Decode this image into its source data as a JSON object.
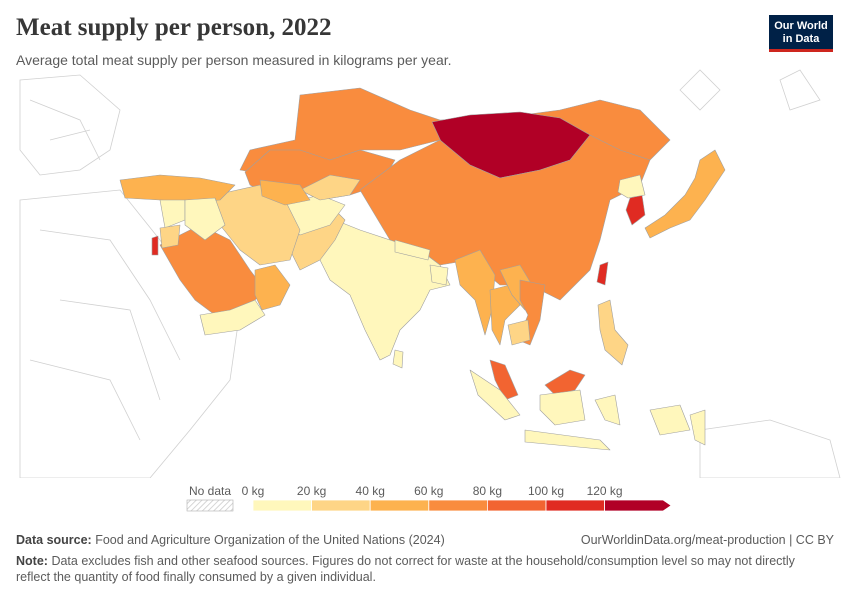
{
  "header": {
    "title": "Meat supply per person, 2022",
    "subtitle": "Average total meat supply per person measured in kilograms per year."
  },
  "logo": {
    "line1": "Our World",
    "line2": "in Data"
  },
  "legend": {
    "no_data_label": "No data",
    "ticks": [
      "0 kg",
      "20 kg",
      "40 kg",
      "60 kg",
      "80 kg",
      "100 kg",
      "120 kg"
    ],
    "colors": [
      "#fff7bc",
      "#fed586",
      "#fdb24f",
      "#f98c3e",
      "#f26431",
      "#e02b22",
      "#b10026"
    ]
  },
  "footer": {
    "source_label": "Data source:",
    "source_text": "Food and Agriculture Organization of the United Nations (2024)",
    "url": "OurWorldinData.org/meat-production | CC BY",
    "note_label": "Note:",
    "note_text": "Data excludes fish and other seafood sources. Figures do not correct for waste at the household/consumption level so may not directly reflect the quantity of food finally consumed by a given individual."
  },
  "map_regions": [
    {
      "name": "Russia",
      "color": "#f98c3e"
    },
    {
      "name": "Kazakhstan",
      "color": "#f98c3e"
    },
    {
      "name": "Mongolia",
      "color": "#b10026"
    },
    {
      "name": "China",
      "color": "#f98c3e"
    },
    {
      "name": "Japan",
      "color": "#fdb24f"
    },
    {
      "name": "South Korea",
      "color": "#e02b22"
    },
    {
      "name": "North Korea",
      "color": "#fff7bc"
    },
    {
      "name": "Taiwan",
      "color": "#e02b22"
    },
    {
      "name": "India",
      "color": "#fff7bc"
    },
    {
      "name": "Pakistan",
      "color": "#fed586"
    },
    {
      "name": "Afghanistan",
      "color": "#fff7bc"
    },
    {
      "name": "Iran",
      "color": "#fed586"
    },
    {
      "name": "Turkey",
      "color": "#fdb24f"
    },
    {
      "name": "Saudi Arabia",
      "color": "#f98c3e"
    },
    {
      "name": "Yemen",
      "color": "#fff7bc"
    },
    {
      "name": "Oman",
      "color": "#fdb24f"
    },
    {
      "name": "Uzbekistan",
      "color": "#fed586"
    },
    {
      "name": "Turkmenistan",
      "color": "#fdb24f"
    },
    {
      "name": "Myanmar",
      "color": "#fdb24f"
    },
    {
      "name": "Thailand",
      "color": "#fdb24f"
    },
    {
      "name": "Laos",
      "color": "#fdb24f"
    },
    {
      "name": "Vietnam",
      "color": "#f98c3e"
    },
    {
      "name": "Cambodia",
      "color": "#fed586"
    },
    {
      "name": "Malaysia",
      "color": "#f26431"
    },
    {
      "name": "Indonesia",
      "color": "#fff7bc"
    },
    {
      "name": "Philippines",
      "color": "#fed586"
    },
    {
      "name": "Papua New Guinea",
      "color": "#fff7bc"
    },
    {
      "name": "Sri Lanka",
      "color": "#fff7bc"
    },
    {
      "name": "Bangladesh",
      "color": "#fff7bc"
    },
    {
      "name": "Nepal",
      "color": "#fff7bc"
    },
    {
      "name": "Syria",
      "color": "#fff7bc"
    },
    {
      "name": "Iraq",
      "color": "#fff7bc"
    },
    {
      "name": "Jordan",
      "color": "#fed586"
    },
    {
      "name": "Israel",
      "color": "#e02b22"
    }
  ]
}
